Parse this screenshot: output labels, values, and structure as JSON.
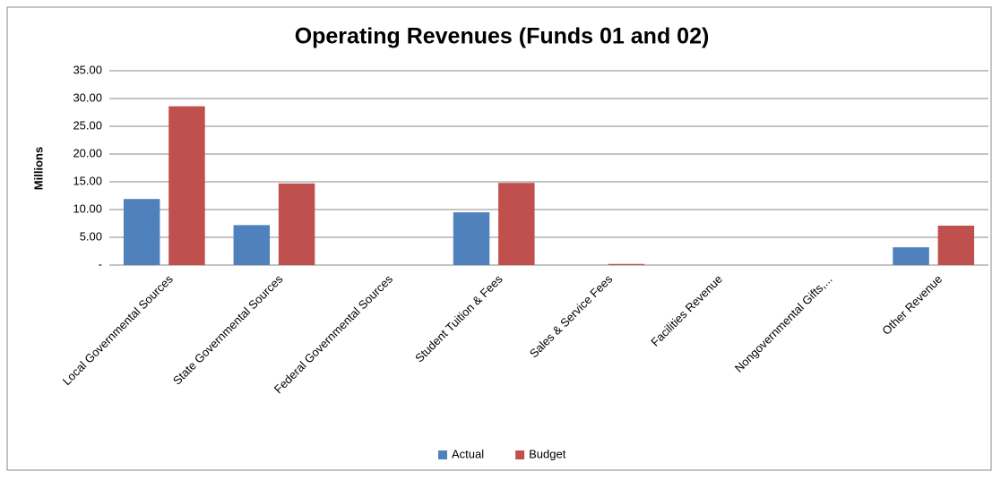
{
  "chart_data": {
    "type": "bar",
    "title": "Operating Revenues (Funds 01 and 02)",
    "y_label": "Millions",
    "categories": [
      "Local Governmental Sources",
      "State Governmental Sources",
      "Federal Governmental Sources",
      "Student Tuition & Fees",
      "Sales & Service Fees",
      "Facilities Revenue",
      "Nongovernmental Gifts,...",
      "Other Revenue"
    ],
    "series": [
      {
        "name": "Actual",
        "color": "#4f81bd",
        "values": [
          11.9,
          7.2,
          0,
          9.5,
          0,
          0,
          0,
          3.2
        ]
      },
      {
        "name": "Budget",
        "color": "#c0504d",
        "values": [
          28.6,
          14.7,
          0,
          14.8,
          0.2,
          0,
          0,
          7.1
        ]
      }
    ],
    "ylim": [
      0,
      35
    ],
    "yticks": [
      {
        "value": 0,
        "label": "-"
      },
      {
        "value": 5,
        "label": "5.00"
      },
      {
        "value": 10,
        "label": "10.00"
      },
      {
        "value": 15,
        "label": "15.00"
      },
      {
        "value": 20,
        "label": "20.00"
      },
      {
        "value": 25,
        "label": "25.00"
      },
      {
        "value": 30,
        "label": "30.00"
      },
      {
        "value": 35,
        "label": "35.00"
      }
    ],
    "grid": true,
    "legend": "bottom"
  }
}
